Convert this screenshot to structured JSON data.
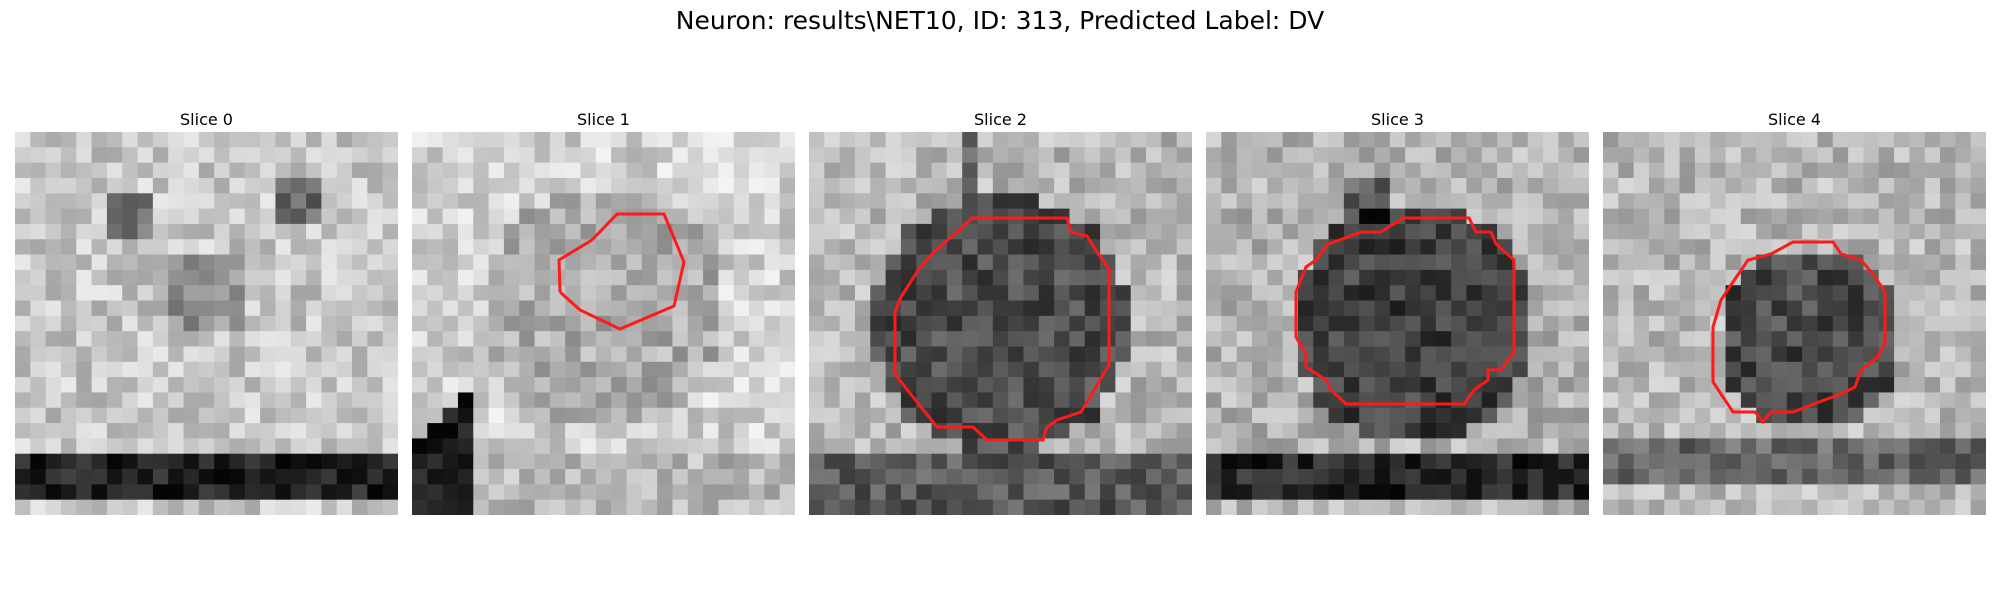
{
  "figure": {
    "title": "Neuron: results\\NET10, ID: 313, Predicted Label: DV"
  },
  "slices": [
    {
      "title": "Slice 0",
      "has_contour": false
    },
    {
      "title": "Slice 1",
      "has_contour": true
    },
    {
      "title": "Slice 2",
      "has_contour": true
    },
    {
      "title": "Slice 3",
      "has_contour": true
    },
    {
      "title": "Slice 4",
      "has_contour": true
    }
  ],
  "colors": {
    "contour": "#ff1a1a",
    "colormap": "grayscale"
  }
}
